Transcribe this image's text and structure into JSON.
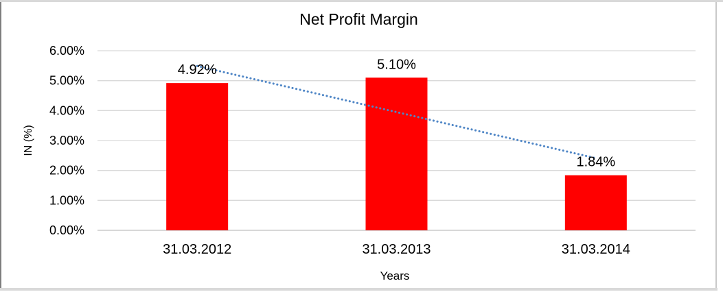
{
  "chart_data": {
    "type": "bar",
    "title": "Net Profit Margin",
    "xlabel": "Years",
    "ylabel": "IN (%)",
    "categories": [
      "31.03.2012",
      "31.03.2013",
      "31.03.2014"
    ],
    "values": [
      4.92,
      5.1,
      1.84
    ],
    "data_labels": [
      "4.92%",
      "5.10%",
      "1.84%"
    ],
    "ytick_values": [
      0,
      1,
      2,
      3,
      4,
      5,
      6
    ],
    "ytick_labels": [
      "0.00%",
      "1.00%",
      "2.00%",
      "3.00%",
      "4.00%",
      "5.00%",
      "6.00%"
    ],
    "ylim": [
      0,
      6
    ],
    "grid": true,
    "legend": "none",
    "bar_color": "#ff0000",
    "gridline_color": "#d9d9d9",
    "axis_line_color": "#bfbfbf",
    "text_color": "#000000",
    "trendline": {
      "type": "linear",
      "style": "dotted",
      "color": "#4f86c6",
      "start": {
        "category_index": 0,
        "value": 5.49
      },
      "end": {
        "category_index": 2,
        "value": 2.41
      }
    }
  }
}
